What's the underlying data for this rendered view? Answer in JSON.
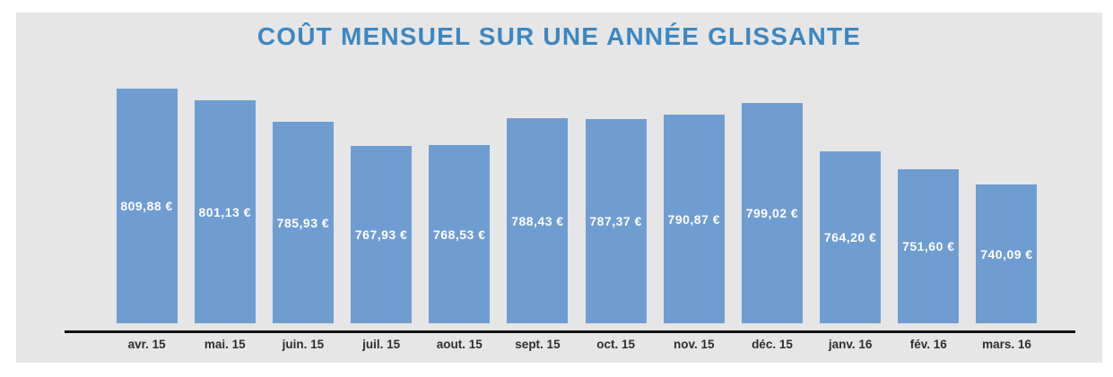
{
  "chart_data": {
    "type": "bar",
    "title": "COÛT MENSUEL SUR UNE ANNÉE GLISSANTE",
    "categories": [
      "avr. 15",
      "mai. 15",
      "juin. 15",
      "juil. 15",
      "aout. 15",
      "sept. 15",
      "oct. 15",
      "nov. 15",
      "déc. 15",
      "janv. 16",
      "fév. 16",
      "mars. 16"
    ],
    "values": [
      809.88,
      801.13,
      785.93,
      767.93,
      768.53,
      788.43,
      787.37,
      790.87,
      799.02,
      764.2,
      751.6,
      740.09
    ],
    "value_labels": [
      "809,88 €",
      "801,13 €",
      "785,93 €",
      "767,93 €",
      "768,53 €",
      "788,43 €",
      "787,37 €",
      "790,87 €",
      "799,02 €",
      "764,20 €",
      "751,60 €",
      "740,09 €"
    ],
    "xlabel": "",
    "ylabel": "",
    "ylim": [
      640,
      820
    ],
    "grid": false,
    "legend": "none",
    "colors": {
      "bar": "#6f9dd2",
      "title": "#3c87c2",
      "panel_background": "#e6e6e6",
      "page_background": "#ffffff",
      "value_label_text": "#ffffff",
      "category_label_text": "#2e2e2e",
      "axis_line": "#121212"
    }
  }
}
